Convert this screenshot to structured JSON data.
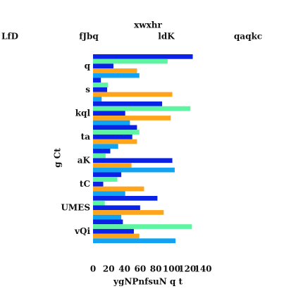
{
  "chart_data": {
    "type": "barh",
    "title": "xwxhr",
    "xlabel": "ygNPnfsuN q t",
    "ylabel": "g Ct",
    "categories": [
      "q",
      "s",
      "kql",
      "ta",
      "aK",
      "tC",
      "UMES",
      "vQi"
    ],
    "series": [
      {
        "name": "LfD",
        "color": "#0a22e6",
        "values": [
          127,
          10,
          88,
          56,
          22,
          36,
          82,
          38
        ]
      },
      {
        "name": "fJbq",
        "color": "#5ef5a2",
        "values": [
          95,
          19,
          124,
          59,
          16,
          31,
          15,
          126
        ]
      },
      {
        "name": "ldK",
        "color": "#0a22e6",
        "values": [
          26,
          18,
          41,
          50,
          101,
          13,
          60,
          52
        ]
      },
      {
        "name": "qaqkc",
        "color": "#ffa51c",
        "values": [
          56,
          101,
          99,
          56,
          49,
          65,
          90,
          59
        ]
      },
      {
        "color": "#12a2f2",
        "values": [
          59,
          11,
          47,
          32,
          104,
          41,
          36,
          105
        ]
      }
    ],
    "xlim": [
      0,
      140
    ],
    "xticks": [
      0,
      20,
      40,
      60,
      80,
      100,
      120,
      140
    ],
    "grid": false
  }
}
